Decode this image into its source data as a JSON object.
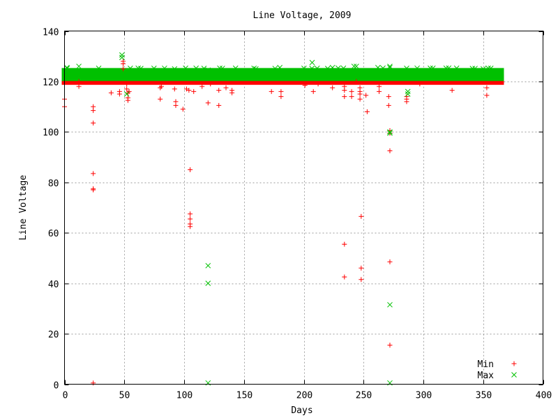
{
  "chart_data": {
    "type": "scatter",
    "title": "Line Voltage, 2009",
    "xlabel": "Days",
    "ylabel": "Line Voltage",
    "xlim": [
      0,
      400
    ],
    "ylim": [
      0,
      140
    ],
    "xticks": [
      0,
      50,
      100,
      150,
      200,
      250,
      300,
      350,
      400
    ],
    "yticks": [
      0,
      20,
      40,
      60,
      80,
      100,
      120,
      140
    ],
    "grid": true,
    "legend_position": "bottom-right",
    "series": [
      {
        "name": "Min",
        "color": "#ff0000",
        "marker": "plus",
        "band": {
          "x_start": 0,
          "x_end": 365,
          "y_low": 119.5,
          "y_high": 122
        },
        "points": [
          [
            0,
            113
          ],
          [
            0,
            110
          ],
          [
            12,
            118
          ],
          [
            12,
            120
          ],
          [
            24,
            110
          ],
          [
            24,
            108.5
          ],
          [
            24,
            103.5
          ],
          [
            24,
            83.5
          ],
          [
            24,
            77.5
          ],
          [
            24,
            77
          ],
          [
            24,
            0.5
          ],
          [
            39,
            115.5
          ],
          [
            46,
            116
          ],
          [
            46,
            115
          ],
          [
            49,
            127
          ],
          [
            49,
            128
          ],
          [
            49,
            125
          ],
          [
            52,
            119
          ],
          [
            52,
            117
          ],
          [
            53,
            115.5
          ],
          [
            53,
            113.5
          ],
          [
            53,
            112.5
          ],
          [
            54,
            116
          ],
          [
            80,
            117.5
          ],
          [
            80,
            113
          ],
          [
            81,
            118
          ],
          [
            92,
            117
          ],
          [
            93,
            112
          ],
          [
            93,
            110.5
          ],
          [
            99,
            109
          ],
          [
            102,
            117
          ],
          [
            104,
            116.5
          ],
          [
            105,
            85
          ],
          [
            105,
            67.5
          ],
          [
            105,
            65.5
          ],
          [
            105,
            63.5
          ],
          [
            105,
            62.5
          ],
          [
            108,
            116
          ],
          [
            115,
            118
          ],
          [
            120,
            111.5
          ],
          [
            122,
            119
          ],
          [
            129,
            116.5
          ],
          [
            129,
            110.5
          ],
          [
            135,
            117.5
          ],
          [
            140,
            116.5
          ],
          [
            140,
            115.5
          ],
          [
            173,
            116
          ],
          [
            181,
            116
          ],
          [
            181,
            114
          ],
          [
            201,
            118.5
          ],
          [
            208,
            116
          ],
          [
            212,
            119
          ],
          [
            224,
            117.5
          ],
          [
            234,
            118
          ],
          [
            234,
            116.5
          ],
          [
            234,
            114
          ],
          [
            234,
            55.5
          ],
          [
            234,
            42.5
          ],
          [
            240,
            116
          ],
          [
            240,
            114
          ],
          [
            244,
            120
          ],
          [
            247,
            117.5
          ],
          [
            247,
            116
          ],
          [
            247,
            115
          ],
          [
            247,
            113
          ],
          [
            248,
            66.5
          ],
          [
            248,
            46
          ],
          [
            248,
            41.5
          ],
          [
            252,
            114.5
          ],
          [
            253,
            108
          ],
          [
            263,
            118
          ],
          [
            263,
            116
          ],
          [
            271,
            114
          ],
          [
            271,
            110.5
          ],
          [
            272,
            100.5
          ],
          [
            272,
            99.5
          ],
          [
            272,
            92.5
          ],
          [
            272,
            48.5
          ],
          [
            272,
            15.5
          ],
          [
            286,
            114
          ],
          [
            286,
            113
          ],
          [
            286,
            112
          ],
          [
            297,
            119
          ],
          [
            324,
            116.5
          ],
          [
            353,
            117.5
          ],
          [
            353,
            114.5
          ]
        ]
      },
      {
        "name": "Max",
        "color": "#00c000",
        "marker": "cross",
        "band": {
          "x_start": 0,
          "x_end": 365,
          "y_low": 121,
          "y_high": 124.5
        },
        "points": [
          [
            2,
            125.5
          ],
          [
            12,
            126
          ],
          [
            25,
            124
          ],
          [
            48,
            130.5
          ],
          [
            48,
            129.5
          ],
          [
            52,
            115
          ],
          [
            92,
            125
          ],
          [
            120,
            47
          ],
          [
            120,
            40
          ],
          [
            120,
            0.5
          ],
          [
            120,
            124.5
          ],
          [
            160,
            125
          ],
          [
            180,
            125.5
          ],
          [
            207,
            127.5
          ],
          [
            224,
            125.5
          ],
          [
            242,
            126
          ],
          [
            244,
            126
          ],
          [
            262,
            125.5
          ],
          [
            272,
            126
          ],
          [
            272,
            125.5
          ],
          [
            272,
            100
          ],
          [
            272,
            99.5
          ],
          [
            272,
            31.5
          ],
          [
            272,
            0.5
          ],
          [
            287,
            116
          ],
          [
            287,
            115
          ],
          [
            350,
            125
          ]
        ]
      }
    ]
  }
}
